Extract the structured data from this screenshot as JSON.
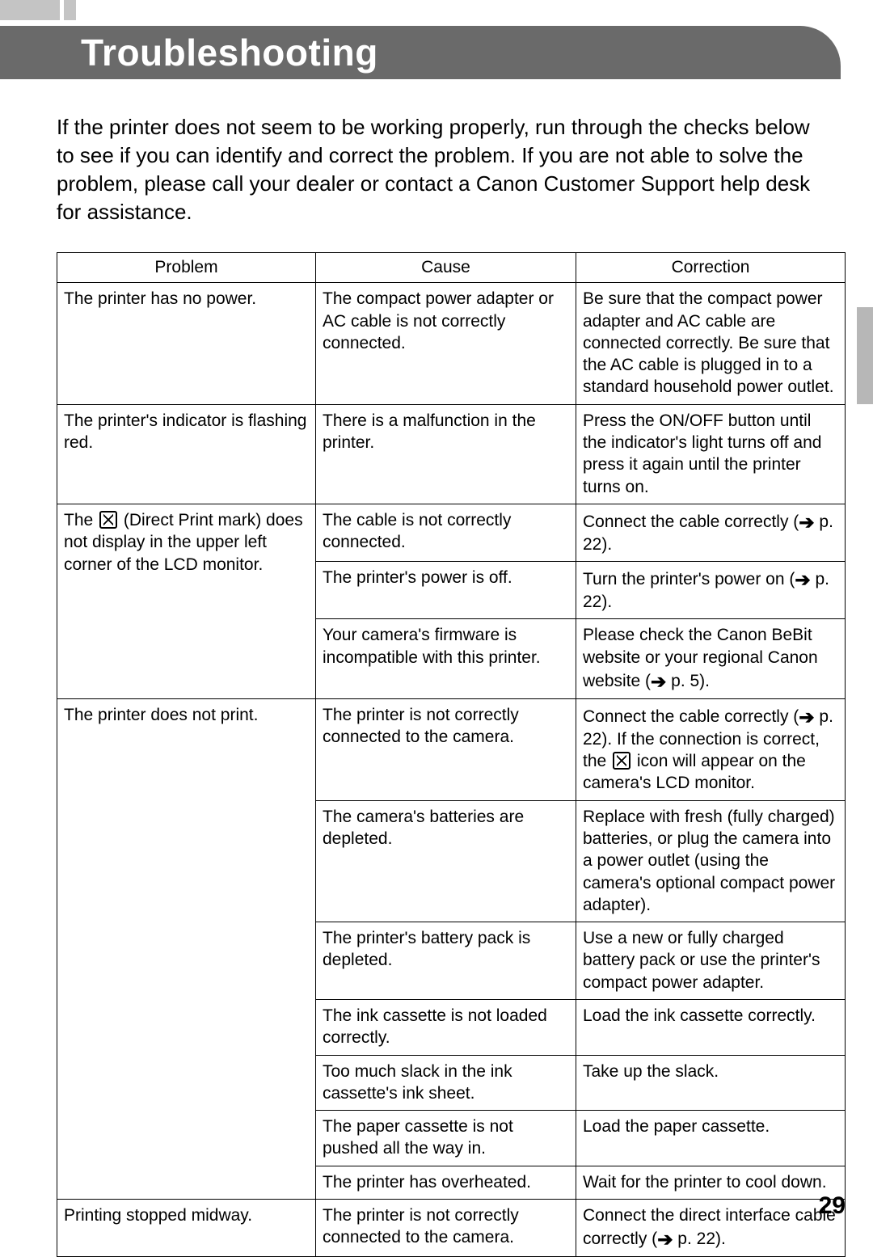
{
  "page": {
    "title": "Troubleshooting",
    "intro": "If the printer does not seem to be working properly, run through the checks below to see if you can identify and correct the problem. If you are not able to solve the problem, please call your dealer or contact a Canon Customer Support help desk for assistance.",
    "page_number": "29"
  },
  "table": {
    "headers": [
      "Problem",
      "Cause",
      "Correction"
    ],
    "rows": [
      {
        "problem": "The printer has no power.",
        "cause": "The compact power adapter or AC cable is not correctly connected.",
        "correction": "Be sure that the compact power adapter and AC cable are connected correctly. Be sure that the AC cable is plugged in to a standard household power outlet."
      },
      {
        "problem": "The printer's indicator is flashing red.",
        "cause": "There is a malfunction in the printer.",
        "correction": "Press the ON/OFF button until the indicator's light turns off and press it again until the printer turns on."
      },
      {
        "problem_pre": "The ",
        "problem_post": " (Direct Print mark) does not display in the upper left corner of the LCD monitor.",
        "rowspan": 3,
        "has_icon": true,
        "cause": "The cable is not correctly connected.",
        "correction_pre": "Connect the cable correctly (",
        "correction_post": " p. 22).",
        "has_arrow": true
      },
      {
        "cause": "The printer's power is off.",
        "correction_pre": "Turn the printer's power on (",
        "correction_post": " p. 22).",
        "has_arrow": true
      },
      {
        "cause": "Your camera's firmware is incompatible with this printer.",
        "correction_pre": "Please check the Canon BeBit website or your regional Canon website (",
        "correction_post": " p. 5).",
        "has_arrow": true
      },
      {
        "problem": "The printer does not print.",
        "rowspan": 7,
        "cause": "The printer is not correctly connected to the camera.",
        "correction_pre": "Connect the cable correctly (",
        "correction_mid": " p. 22). If the connection is correct, the ",
        "correction_post": " icon will appear on the camera's LCD monitor.",
        "has_arrow": true,
        "has_mid_icon": true
      },
      {
        "cause": "The camera's batteries are depleted.",
        "correction": "Replace with fresh (fully charged) batteries, or plug the camera into a power outlet (using the camera's optional compact power adapter)."
      },
      {
        "cause": "The printer's battery pack is depleted.",
        "correction": "Use a new or fully charged battery pack or use the printer's compact power adapter."
      },
      {
        "cause": "The ink cassette is not loaded correctly.",
        "correction": "Load the ink cassette correctly."
      },
      {
        "cause": "Too much slack in the ink cassette's ink sheet.",
        "correction": "Take up the slack."
      },
      {
        "cause": "The paper cassette is not pushed all the way in.",
        "correction": "Load the paper cassette."
      },
      {
        "cause": "The printer has overheated.",
        "correction": "Wait for the printer to cool down."
      },
      {
        "problem": "Printing stopped midway.",
        "cause": "The printer is not correctly connected to the camera.",
        "correction_pre": "Connect the direct interface cable correctly (",
        "correction_post": " p. 22).",
        "has_arrow": true
      }
    ]
  },
  "colors": {
    "header_bg": "#6a6a6a",
    "header_text": "#ffffff",
    "body_text": "#000000",
    "border": "#000000",
    "side_tab": "#b7b7b7"
  },
  "typography": {
    "title_fontsize": 46,
    "intro_fontsize": 26,
    "table_fontsize": 21,
    "page_num_fontsize": 30
  }
}
